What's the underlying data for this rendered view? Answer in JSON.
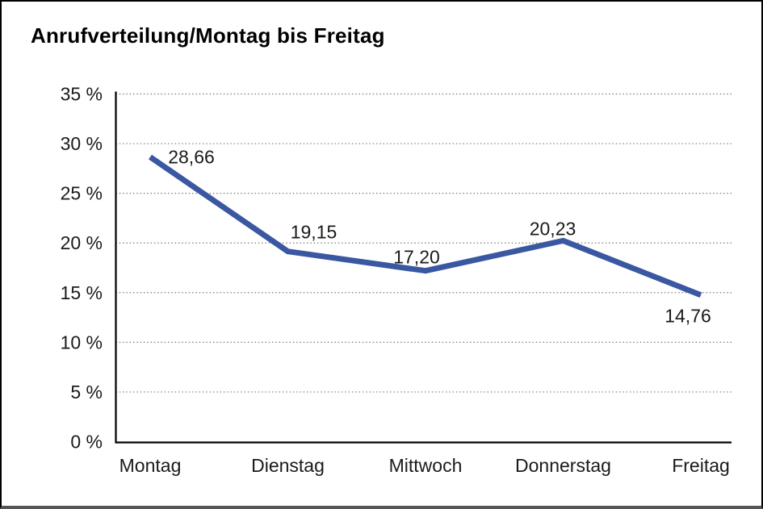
{
  "title": "Anrufverteilung/Montag bis Freitag",
  "colors": {
    "line": "#3A57A2",
    "grid": "#7b7b7b",
    "axis": "#000000",
    "text": "#1a1a1a",
    "frame": "#000000",
    "frame_bottom": "#555555",
    "background": "#ffffff"
  },
  "chart_data": {
    "type": "line",
    "title": "Anrufverteilung/Montag bis Freitag",
    "categories": [
      "Montag",
      "Dienstag",
      "Mittwoch",
      "Donnerstag",
      "Freitag"
    ],
    "values": [
      28.66,
      19.15,
      17.2,
      20.23,
      14.76
    ],
    "value_labels": [
      "28,66",
      "19,15",
      "17,20",
      "20,23",
      "14,76"
    ],
    "series_name": "Anrufverteilung",
    "xlabel": "",
    "ylabel": "",
    "ylim": [
      0,
      35
    ],
    "ytick_step": 5,
    "ytick_labels": [
      "0 %",
      "5 %",
      "10 %",
      "15 %",
      "20 %",
      "25 %",
      "30 %",
      "35 %"
    ],
    "grid": "horizontal-dotted",
    "legend": "none",
    "line_color": "#3A57A2"
  }
}
